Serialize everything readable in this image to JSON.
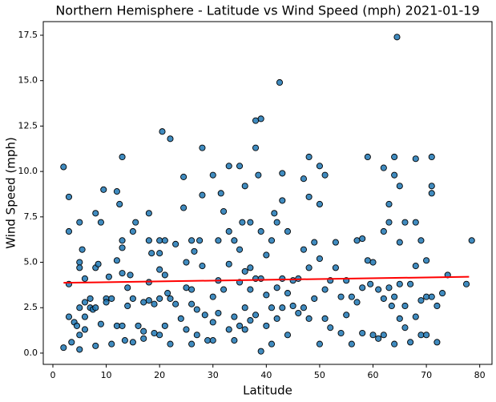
{
  "chart_data": {
    "type": "scatter",
    "title": "Northern Hemisphere - Latitude vs Wind Speed (mph) 2021-01-19",
    "xlabel": "Latitude",
    "ylabel": "Wind Speed (mph)",
    "xlim": [
      -1.8,
      82.3
    ],
    "ylim": [
      -0.62,
      18.25
    ],
    "xticks": [
      0,
      10,
      20,
      30,
      40,
      50,
      60,
      70,
      80
    ],
    "yticks": [
      {
        "value": 0,
        "label": "0.0"
      },
      2.5,
      {
        "value": 5,
        "label": "5.0"
      },
      7.5,
      {
        "value": 10,
        "label": "10.0"
      },
      12.5,
      {
        "value": 15,
        "label": "15.0"
      },
      17.5
    ],
    "color": "#1f77b4",
    "edgecolor": "#000000",
    "x": [
      2,
      2,
      3,
      3,
      3,
      3,
      3.5,
      4,
      4.5,
      5,
      5,
      5,
      5.5,
      5,
      5,
      5,
      6,
      6,
      6,
      6,
      7,
      7,
      7.5,
      8,
      8,
      8,
      8,
      8.5,
      9,
      9,
      9.5,
      10,
      10,
      10.5,
      11,
      11,
      12,
      12,
      12,
      12.5,
      13,
      13,
      13,
      13,
      13,
      13.5,
      14,
      14,
      14.5,
      15,
      15,
      15,
      15.5,
      16,
      17,
      17,
      17,
      18,
      18,
      18,
      18,
      18.5,
      19,
      19,
      20,
      20,
      20,
      20,
      20,
      20.5,
      21,
      21,
      21,
      21.5,
      22,
      22,
      22,
      23,
      23,
      24,
      24.5,
      24.5,
      25,
      25,
      25,
      26,
      26,
      26,
      26,
      26.5,
      27,
      27,
      27.5,
      28,
      28,
      28,
      28.5,
      29,
      30,
      30,
      30,
      30,
      31,
      31,
      31,
      31.5,
      32,
      32,
      33,
      33,
      33,
      33,
      34,
      34,
      34,
      35,
      35,
      35,
      35,
      35.5,
      36,
      36,
      36,
      36,
      37,
      37,
      37,
      37,
      38,
      38,
      38,
      38,
      38.5,
      39,
      39,
      39,
      39,
      40,
      40,
      40,
      41,
      41,
      41,
      41.5,
      42,
      42,
      42,
      42.5,
      43,
      43,
      43,
      43,
      44,
      44,
      44,
      45,
      45,
      46,
      46,
      47,
      47,
      47,
      48,
      48,
      48,
      48,
      49,
      49,
      50,
      50,
      50,
      50,
      51,
      51,
      51,
      52,
      52,
      53,
      53,
      54,
      54,
      55,
      55,
      56,
      56,
      57,
      57,
      58,
      58,
      58,
      59,
      59,
      59.5,
      60,
      60,
      61,
      61,
      62,
      62,
      62,
      62,
      63,
      63,
      63,
      63.5,
      64,
      64,
      64,
      64,
      64.5,
      65,
      65,
      65,
      65,
      66,
      66,
      66,
      67,
      67,
      68,
      68,
      68,
      68,
      69,
      69,
      69,
      70,
      70,
      70,
      71,
      71,
      71,
      71,
      72,
      72,
      73,
      74,
      77.5,
      78.5
    ],
    "values": [
      10.25,
      0.3,
      8.6,
      6.7,
      3.8,
      2,
      0.6,
      1.7,
      1.5,
      7.2,
      5,
      4.7,
      5.7,
      0.2,
      1,
      2.5,
      4.1,
      2.8,
      2,
      1.3,
      3,
      2.5,
      2.4,
      4.7,
      7.7,
      2.5,
      0.4,
      4.9,
      7.2,
      1.6,
      9,
      3,
      2.8,
      4.2,
      0.5,
      3,
      8.9,
      5.1,
      1.5,
      8.2,
      10.8,
      6.2,
      5.8,
      4.4,
      1.5,
      0.7,
      3.6,
      2.6,
      4.3,
      6.7,
      3,
      0.6,
      7.2,
      1.5,
      1.2,
      2.8,
      0.8,
      7.7,
      6.2,
      3.9,
      2.9,
      5.5,
      2.7,
      1.1,
      6.2,
      5.5,
      4.6,
      3,
      1,
      12.2,
      6.2,
      4.3,
      1.5,
      3.3,
      11.8,
      3,
      0.5,
      6,
      2.7,
      1.9,
      8,
      9.7,
      5,
      3.6,
      1.3,
      6.2,
      3.5,
      2.7,
      0.5,
      5.6,
      2.4,
      1,
      6.2,
      11.3,
      8.7,
      4.8,
      2.1,
      0.7,
      9.8,
      3.1,
      1.7,
      0.7,
      6.2,
      4,
      2.2,
      8.8,
      7.8,
      3.5,
      10.3,
      6.7,
      4.9,
      1.3,
      6.2,
      2,
      0.7,
      10.3,
      5.7,
      3.9,
      1.5,
      7.2,
      9.2,
      4.5,
      2.5,
      1.3,
      7.2,
      4.7,
      3.5,
      1.8,
      12.8,
      11.3,
      4.1,
      2.1,
      9.8,
      12.9,
      4.1,
      0.1,
      6.7,
      5.4,
      3.2,
      1.5,
      6.2,
      2.5,
      0.5,
      7.7,
      7.2,
      3.6,
      1.9,
      14.9,
      8.4,
      9.9,
      4.1,
      2.5,
      6.7,
      3.3,
      1,
      4,
      2.6,
      4.1,
      2.2,
      9.6,
      5.7,
      2.5,
      10.8,
      8.6,
      4.7,
      1.9,
      6.1,
      3,
      10.3,
      8.2,
      5.2,
      0.5,
      9.8,
      3.5,
      1.9,
      4,
      1.4,
      6.1,
      4.7,
      3.1,
      1.1,
      4,
      2.1,
      3.1,
      0.5,
      2.8,
      6.2,
      6.3,
      3.6,
      1.1,
      5.1,
      10.8,
      3.8,
      5,
      1,
      3.5,
      0.8,
      10.2,
      6.7,
      3,
      1,
      8.2,
      7.2,
      3.6,
      2.6,
      10.8,
      9.8,
      3.1,
      0.5,
      17.4,
      9.2,
      6.1,
      3.8,
      1.9,
      7.2,
      2.6,
      1.4,
      3.8,
      0.6,
      10.7,
      7.2,
      4.8,
      2,
      6.2,
      2.9,
      1,
      5.1,
      3.1,
      1,
      10.8,
      9.2,
      8.8,
      3.1,
      2.6,
      0.6,
      3.3,
      4.3,
      3.8,
      6.2
    ],
    "fit_line": {
      "color": "#ff0000",
      "x": [
        2,
        78
      ],
      "values": [
        3.87,
        4.2
      ]
    }
  }
}
